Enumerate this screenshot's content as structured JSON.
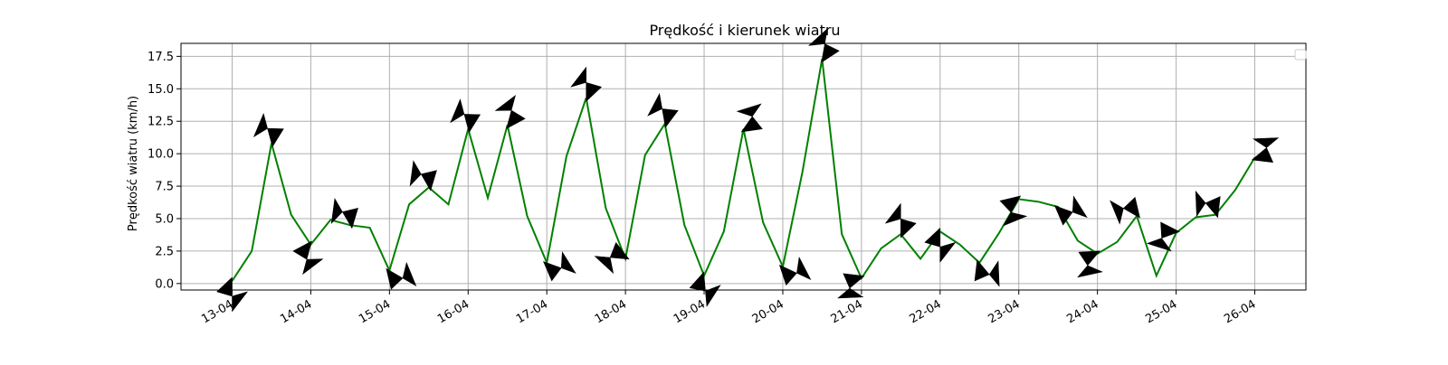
{
  "chart_data": {
    "type": "line",
    "title": "Prędkość i kierunek wiatru",
    "xlabel": "",
    "ylabel": "Prędkość wiatru (km/h)",
    "ylim": [
      -0.5,
      18.5
    ],
    "yticks": [
      0.0,
      2.5,
      5.0,
      7.5,
      10.0,
      12.5,
      15.0,
      17.5
    ],
    "ytick_labels": [
      "0.0",
      "2.5",
      "5.0",
      "7.5",
      "10.0",
      "12.5",
      "15.0",
      "17.5"
    ],
    "xtick_labels": [
      "13-04",
      "14-04",
      "15-04",
      "16-04",
      "17-04",
      "18-04",
      "19-04",
      "20-04",
      "21-04",
      "22-04",
      "23-04",
      "24-04",
      "25-04",
      "26-04"
    ],
    "x_unit": "days from 13-04",
    "xlim": [
      -0.65,
      13.65
    ],
    "grid": true,
    "legend": {
      "placement": "top-right",
      "entries": []
    },
    "series": [
      {
        "color": "#008000",
        "x": [
          0,
          0.25,
          0.5,
          0.75,
          1,
          1.25,
          1.5,
          1.75,
          2,
          2.25,
          2.5,
          2.75,
          3,
          3.25,
          3.5,
          3.75,
          4,
          4.25,
          4.5,
          4.75,
          5,
          5.25,
          5.5,
          5.75,
          6,
          6.25,
          6.5,
          6.75,
          7,
          7.25,
          7.5,
          7.75,
          8,
          8.25,
          8.5,
          8.75,
          9,
          9.25,
          9.5,
          9.75,
          10,
          10.25,
          10.5,
          10.75,
          11,
          11.25,
          11.5,
          11.75,
          12,
          12.25,
          12.5,
          12.75,
          13
        ],
        "values": [
          0.2,
          2.5,
          10.8,
          5.3,
          3.0,
          4.9,
          4.5,
          4.3,
          1.0,
          6.1,
          7.4,
          6.1,
          11.9,
          6.6,
          12.2,
          5.2,
          1.6,
          9.8,
          14.3,
          5.8,
          1.9,
          9.9,
          12.3,
          4.5,
          0.6,
          4.0,
          11.9,
          4.7,
          1.3,
          8.6,
          17.3,
          3.8,
          0.4,
          2.7,
          3.8,
          1.9,
          4.0,
          3.0,
          1.6,
          3.9,
          6.5,
          6.3,
          5.9,
          3.3,
          2.3,
          3.2,
          5.2,
          0.6,
          3.9,
          5.1,
          5.3,
          7.2,
          9.7
        ]
      }
    ],
    "direction_arrows": {
      "color": "#000000",
      "x": [
        0,
        0.5,
        1,
        1.5,
        2,
        2.5,
        3,
        3.5,
        4,
        4.5,
        5,
        5.5,
        6,
        6.5,
        7,
        7.5,
        8,
        8.5,
        9,
        9.5,
        10,
        10.5,
        11,
        11.5,
        12,
        12.5,
        13
      ],
      "values": [
        0.2,
        10.8,
        3.0,
        4.5,
        1.0,
        7.4,
        11.9,
        12.2,
        1.6,
        14.3,
        1.9,
        12.3,
        0.6,
        11.9,
        1.3,
        17.3,
        0.4,
        3.8,
        4.0,
        1.6,
        6.5,
        5.9,
        2.3,
        5.2,
        3.9,
        5.3,
        9.7
      ],
      "direction_deg": [
        -90,
        105,
        255,
        120,
        -30,
        120,
        105,
        75,
        -20,
        90,
        175,
        100,
        -85,
        55,
        -25,
        80,
        220,
        90,
        -90,
        -50,
        240,
        -20,
        230,
        150,
        200,
        130,
        40
      ]
    }
  }
}
